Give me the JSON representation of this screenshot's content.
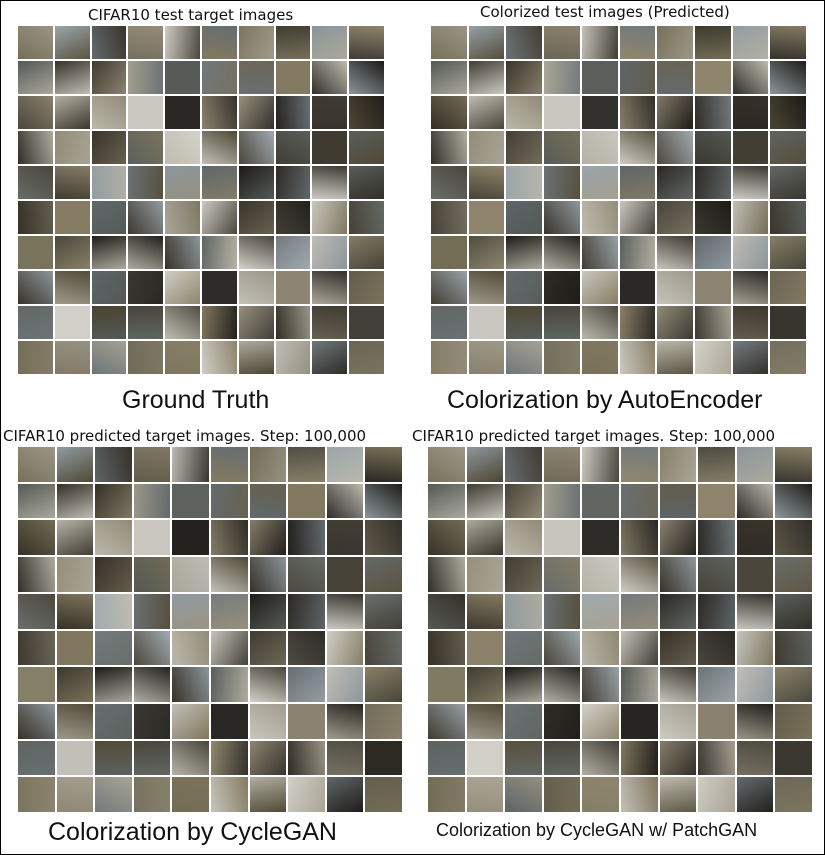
{
  "panels": [
    {
      "id": "ground-truth",
      "title": "CIFAR10 test target images",
      "caption": "Ground Truth",
      "seed": 11
    },
    {
      "id": "autoencoder",
      "title": "Colorized test images (Predicted)",
      "caption": "Colorization by AutoEncoder",
      "seed": 11
    },
    {
      "id": "cyclegan",
      "title": "CIFAR10 predicted target images. Step: 100,000",
      "caption": "Colorization by CycleGAN",
      "seed": 11
    },
    {
      "id": "cyclegan-patchgan",
      "title": "CIFAR10 predicted target images. Step: 100,000",
      "caption": "Colorization by CycleGAN w/ PatchGAN",
      "seed": 11
    }
  ],
  "grid": {
    "rows": 10,
    "cols": 10
  }
}
